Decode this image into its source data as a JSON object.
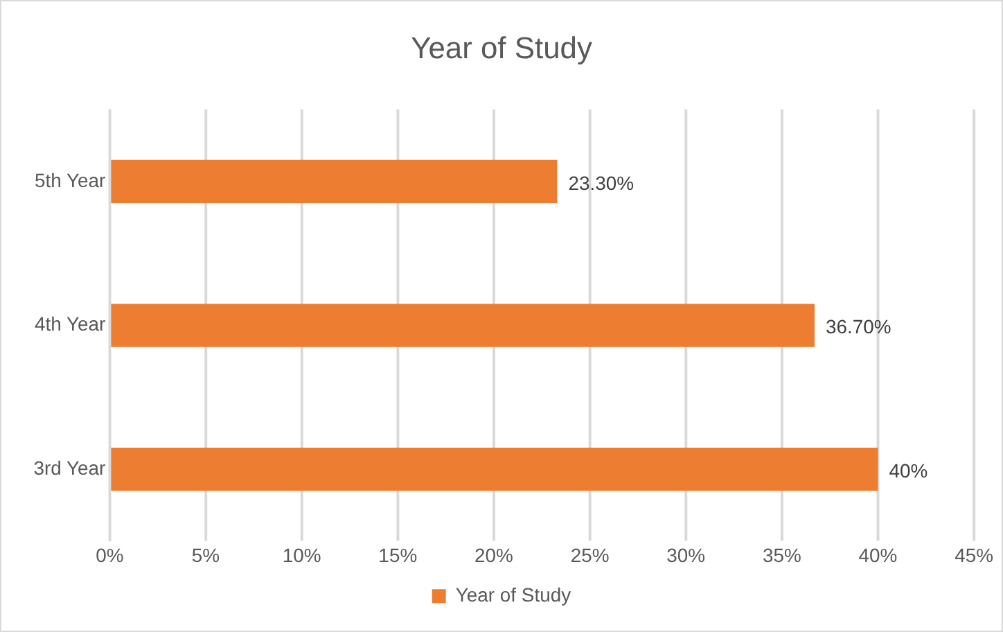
{
  "chart_data": {
    "type": "bar",
    "orientation": "horizontal",
    "title": "Year of Study",
    "categories": [
      "5th Year",
      "4th Year",
      "3rd Year"
    ],
    "series": [
      {
        "name": "Year of Study",
        "color": "#ed7d31",
        "values": [
          23.3,
          36.7,
          40
        ],
        "value_labels": [
          "23.30%",
          "36.70%",
          "40%"
        ]
      }
    ],
    "xlim": [
      0,
      45
    ],
    "xticks": [
      {
        "value": 0,
        "label": "0%"
      },
      {
        "value": 5,
        "label": "5%"
      },
      {
        "value": 10,
        "label": "10%"
      },
      {
        "value": 15,
        "label": "15%"
      },
      {
        "value": 20,
        "label": "20%"
      },
      {
        "value": 25,
        "label": "25%"
      },
      {
        "value": 30,
        "label": "30%"
      },
      {
        "value": 35,
        "label": "35%"
      },
      {
        "value": 40,
        "label": "40%"
      },
      {
        "value": 45,
        "label": "45%"
      }
    ],
    "grid": "x",
    "legend": "bottom"
  }
}
